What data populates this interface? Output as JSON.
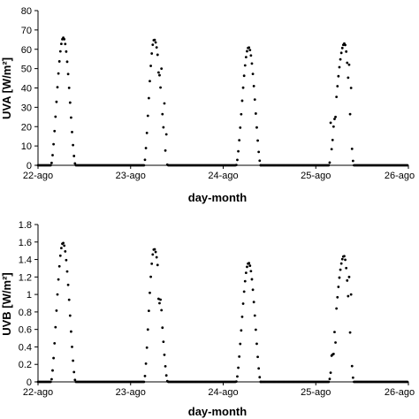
{
  "chart_data": [
    {
      "type": "scatter",
      "panel_letter": "",
      "xlabel": "day-month",
      "ylabel": "UVA [W/m²]",
      "ylim": [
        0,
        80
      ],
      "yticks": [
        0,
        10,
        20,
        30,
        40,
        50,
        60,
        70,
        80
      ],
      "xticks": [
        "22-ago",
        "23-ago",
        "24-ago",
        "25-ago",
        "26-ago"
      ],
      "xlim": [
        0,
        4
      ],
      "grid": false,
      "marker_color": "#000000",
      "days": [
        {
          "start": 0.14,
          "end": 0.405,
          "peak_x": 0.273,
          "peak": 66,
          "dips": []
        },
        {
          "start": 1.145,
          "end": 1.4,
          "peak_x": 1.255,
          "peak": 65,
          "dips": [
            [
              1.3,
              48
            ],
            [
              1.335,
              50
            ],
            [
              1.365,
              32
            ],
            [
              1.385,
              16
            ]
          ]
        },
        {
          "start": 1.14,
          "end": 1.14,
          "peak_x": 1.14,
          "peak": 0,
          "dips": []
        },
        {
          "start": 2.14,
          "end": 2.405,
          "peak_x": 2.275,
          "peak": 61,
          "dips": []
        },
        {
          "start": 3.14,
          "end": 3.41,
          "peak_x": 3.31,
          "peak": 63,
          "dips": [
            [
              3.165,
              22
            ],
            [
              3.19,
              20
            ],
            [
              3.215,
              25
            ],
            [
              3.36,
              52
            ],
            [
              3.385,
              40
            ]
          ]
        }
      ]
    },
    {
      "type": "scatter",
      "panel_letter": "",
      "xlabel": "day-month",
      "ylabel": "UVB [W/m²]",
      "ylim": [
        0,
        1.8
      ],
      "yticks": [
        0,
        0.2,
        0.4,
        0.6,
        0.8,
        1,
        1.2,
        1.4,
        1.6,
        1.8
      ],
      "xticks": [
        "22-ago",
        "23-ago",
        "24-ago",
        "25-ago",
        "26-ago"
      ],
      "xlim": [
        0,
        4
      ],
      "grid": false,
      "marker_color": "#000000",
      "days": [
        {
          "start": 0.14,
          "end": 0.405,
          "peak_x": 0.27,
          "peak": 1.59,
          "dips": []
        },
        {
          "start": 1.145,
          "end": 1.4,
          "peak_x": 1.255,
          "peak": 1.52,
          "dips": [
            [
              1.3,
              0.95
            ],
            [
              1.315,
              0.9
            ],
            [
              1.33,
              0.82
            ],
            [
              1.345,
              0.62
            ]
          ]
        },
        {
          "start": 2.14,
          "end": 2.405,
          "peak_x": 2.275,
          "peak": 1.36,
          "dips": []
        },
        {
          "start": 3.14,
          "end": 3.41,
          "peak_x": 3.305,
          "peak": 1.44,
          "dips": [
            [
              3.175,
              0.3
            ],
            [
              3.19,
              0.32
            ],
            [
              3.21,
              0.45
            ],
            [
              3.355,
              1.2
            ],
            [
              3.38,
              1.0
            ]
          ]
        }
      ]
    }
  ]
}
